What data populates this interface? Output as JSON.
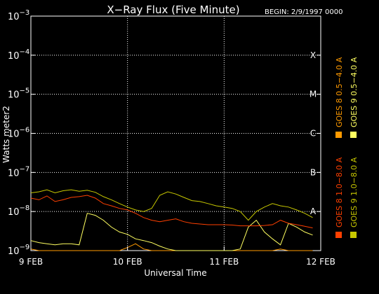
{
  "chart_data": {
    "type": "line",
    "title": "X−Ray Flux (Five Minute)",
    "begin": "BEGIN: 2/9/1997 0000",
    "xlabel": "Universal Time",
    "ylabel": "Watts meter2",
    "y_scale": "log",
    "ylim": [
      1e-09,
      0.001
    ],
    "xlim": [
      0,
      72
    ],
    "x_units": "hours since 9 FEB 1997 00:00",
    "x_ticks": [
      {
        "label": "9 FEB",
        "x": 0
      },
      {
        "label": "10 FEB",
        "x": 24
      },
      {
        "label": "11 FEB",
        "x": 48
      },
      {
        "label": "12 FEB",
        "x": 72
      }
    ],
    "y_ticks": [
      {
        "mant": "10",
        "exp": "−9",
        "value": 1e-09
      },
      {
        "mant": "10",
        "exp": "−8",
        "value": 1e-08
      },
      {
        "mant": "10",
        "exp": "−7",
        "value": 1e-07
      },
      {
        "mant": "10",
        "exp": "−6",
        "value": 1e-06
      },
      {
        "mant": "10",
        "exp": "−5",
        "value": 1e-05
      },
      {
        "mant": "10",
        "exp": "−4",
        "value": 0.0001
      },
      {
        "mant": "10",
        "exp": "−3",
        "value": 0.001
      }
    ],
    "flare_classes": [
      {
        "label": "A",
        "value": 1e-08
      },
      {
        "label": "B",
        "value": 1e-07
      },
      {
        "label": "C",
        "value": 1e-06
      },
      {
        "label": "M",
        "value": 1e-05
      },
      {
        "label": "X",
        "value": 0.0001
      }
    ],
    "grid": true,
    "legend_position": "right-vertical",
    "series": [
      {
        "name": "GOES 8 1.0−8.0 A",
        "color": "#ff4000",
        "x": [
          0,
          2,
          4,
          6,
          8,
          10,
          12,
          14,
          16,
          18,
          20,
          22,
          24,
          26,
          28,
          30,
          32,
          34,
          36,
          38,
          40,
          42,
          44,
          46,
          48,
          50,
          52,
          54,
          56,
          58,
          60,
          62,
          64,
          66,
          68,
          70
        ],
        "y": [
          2.2e-08,
          2e-08,
          2.5e-08,
          1.8e-08,
          2e-08,
          2.3e-08,
          2.4e-08,
          2.6e-08,
          2.2e-08,
          1.6e-08,
          1.4e-08,
          1.2e-08,
          1.1e-08,
          9e-09,
          7e-09,
          6e-09,
          5.5e-09,
          6e-09,
          6.5e-09,
          5.5e-09,
          5e-09,
          4.8e-09,
          4.6e-09,
          4.6e-09,
          4.6e-09,
          4.5e-09,
          4.3e-09,
          4.3e-09,
          4.3e-09,
          4.4e-09,
          4.6e-09,
          6e-09,
          5e-09,
          4.6e-09,
          4.2e-09,
          3.8e-09
        ]
      },
      {
        "name": "GOES 8 0.5−4.0 A",
        "color": "#ff9a00",
        "x": [
          0,
          2,
          4,
          6,
          8,
          10,
          12,
          14,
          16,
          18,
          20,
          22,
          24,
          26,
          28,
          30,
          32,
          34,
          36,
          38,
          40,
          42,
          44,
          46,
          48,
          50,
          52,
          54,
          56,
          58,
          60,
          62,
          64,
          66,
          68,
          70
        ],
        "y": [
          1.1e-09,
          1e-09,
          1e-09,
          1e-09,
          1e-09,
          1e-09,
          1e-09,
          1e-09,
          1e-09,
          1e-09,
          1e-09,
          1e-09,
          1.2e-09,
          1.5e-09,
          1.1e-09,
          1e-09,
          1e-09,
          1e-09,
          1e-09,
          1e-09,
          1e-09,
          1e-09,
          1e-09,
          1e-09,
          1e-09,
          1e-09,
          1e-09,
          1e-09,
          1e-09,
          1e-09,
          1e-09,
          1.1e-09,
          1e-09,
          1e-09,
          1e-09,
          1e-09
        ]
      },
      {
        "name": "GOES 9 0.5−4.0 A",
        "color": "#ffff60",
        "x": [
          0,
          2,
          4,
          6,
          8,
          10,
          12,
          14,
          16,
          18,
          20,
          22,
          24,
          26,
          28,
          30,
          32,
          34,
          36,
          38,
          40,
          42,
          44,
          46,
          48,
          50,
          52,
          54,
          56,
          58,
          60,
          62,
          64,
          66,
          68,
          70
        ],
        "y": [
          1.8e-09,
          1.6e-09,
          1.5e-09,
          1.4e-09,
          1.5e-09,
          1.5e-09,
          1.4e-09,
          9e-09,
          8e-09,
          6e-09,
          4e-09,
          3e-09,
          2.6e-09,
          2e-09,
          1.8e-09,
          1.6e-09,
          1.3e-09,
          1.1e-09,
          1e-09,
          1e-09,
          1e-09,
          1e-09,
          1e-09,
          1e-09,
          1e-09,
          1e-09,
          1.1e-09,
          4e-09,
          6e-09,
          3e-09,
          2e-09,
          1.4e-09,
          5e-09,
          4e-09,
          3e-09,
          2.5e-09
        ]
      },
      {
        "name": "GOES 9 1.0−8.0 A",
        "color": "#c8c800",
        "x": [
          0,
          2,
          4,
          6,
          8,
          10,
          12,
          14,
          16,
          18,
          20,
          22,
          24,
          26,
          28,
          30,
          32,
          34,
          36,
          38,
          40,
          42,
          44,
          46,
          48,
          50,
          52,
          54,
          56,
          58,
          60,
          62,
          64,
          66,
          68,
          70
        ],
        "y": [
          3e-08,
          3.2e-08,
          3.6e-08,
          3e-08,
          3.4e-08,
          3.6e-08,
          3.3e-08,
          3.5e-08,
          3.1e-08,
          2.4e-08,
          2e-08,
          1.6e-08,
          1.3e-08,
          1.1e-08,
          1e-08,
          1.2e-08,
          2.6e-08,
          3.2e-08,
          2.8e-08,
          2.3e-08,
          1.9e-08,
          1.8e-08,
          1.6e-08,
          1.4e-08,
          1.3e-08,
          1.2e-08,
          1e-08,
          6e-09,
          1e-08,
          1.3e-08,
          1.6e-08,
          1.4e-08,
          1.3e-08,
          1.1e-08,
          9e-09,
          7e-09
        ]
      }
    ]
  }
}
